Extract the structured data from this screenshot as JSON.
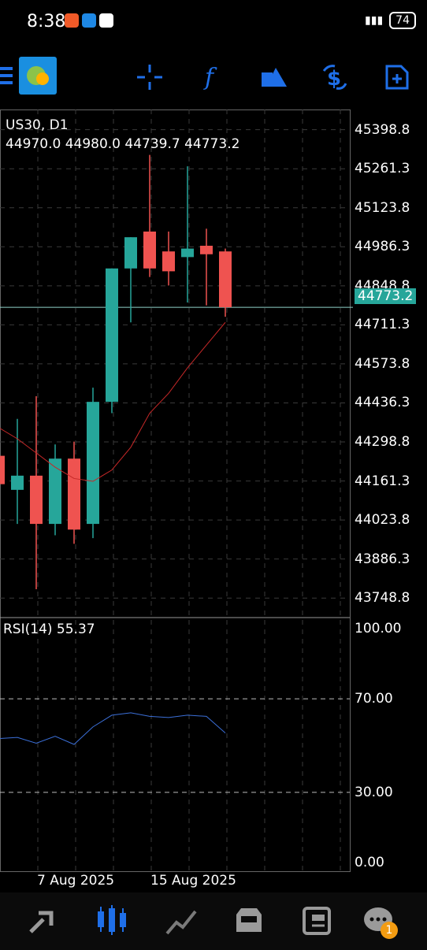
{
  "status": {
    "time": "8:38",
    "battery": "74"
  },
  "chart": {
    "symbol_label": "US30, D1",
    "ohlc_label": "44970.0 44980.0 44739.7 44773.2",
    "rsi_label": "RSI(14) 55.37",
    "current_price": "44773.2",
    "price_labels": [
      "45398.8",
      "45261.3",
      "45123.8",
      "44986.3",
      "44848.8",
      "44711.3",
      "44573.8",
      "44436.3",
      "44298.8",
      "44161.3",
      "44023.8",
      "43886.3",
      "43748.8"
    ],
    "rsi_levels": [
      "100.00",
      "70.00",
      "30.00",
      "0.00"
    ],
    "date_labels": [
      "7 Aug 2025",
      "15 Aug 2025"
    ]
  },
  "nav": {
    "badge": "1"
  },
  "chart_data": {
    "type": "candlestick",
    "symbol": "US30",
    "timeframe": "D1",
    "y_range": [
      43680,
      45470
    ],
    "candles": [
      {
        "open": 44250,
        "high": 44420,
        "low": 44130,
        "close": 44150
      },
      {
        "open": 44130,
        "high": 44380,
        "low": 44010,
        "close": 44180
      },
      {
        "open": 44180,
        "high": 44460,
        "low": 43780,
        "close": 44010
      },
      {
        "open": 44010,
        "high": 44290,
        "low": 43970,
        "close": 44240
      },
      {
        "open": 44240,
        "high": 44300,
        "low": 43940,
        "close": 43990
      },
      {
        "open": 44010,
        "high": 44490,
        "low": 43960,
        "close": 44440
      },
      {
        "open": 44440,
        "high": 44910,
        "low": 44400,
        "close": 44910
      },
      {
        "open": 44910,
        "high": 45020,
        "low": 44720,
        "close": 45020
      },
      {
        "open": 45040,
        "high": 45310,
        "low": 44880,
        "close": 44910
      },
      {
        "open": 44970,
        "high": 45040,
        "low": 44850,
        "close": 44900
      },
      {
        "open": 44950,
        "high": 45270,
        "low": 44790,
        "close": 44980
      },
      {
        "open": 44990,
        "high": 45050,
        "low": 44780,
        "close": 44960
      },
      {
        "open": 44970,
        "high": 44980,
        "low": 44739.7,
        "close": 44773.2
      }
    ],
    "ma": [
      44350,
      44310,
      44260,
      44210,
      44170,
      44160,
      44200,
      44280,
      44400,
      44470,
      44560,
      44640,
      44720
    ],
    "rsi": [
      53,
      53.5,
      51,
      54,
      50.5,
      58,
      63,
      64,
      62.5,
      62,
      63,
      62.5,
      55.37
    ],
    "rsi_range": [
      0,
      100
    ],
    "rsi_levels": [
      30,
      70
    ],
    "colors": {
      "bull": "#26a69a",
      "bear": "#ef5350",
      "ma": "#c62828",
      "rsi": "#3b6fd8",
      "accent": "#1f6fe8"
    }
  }
}
